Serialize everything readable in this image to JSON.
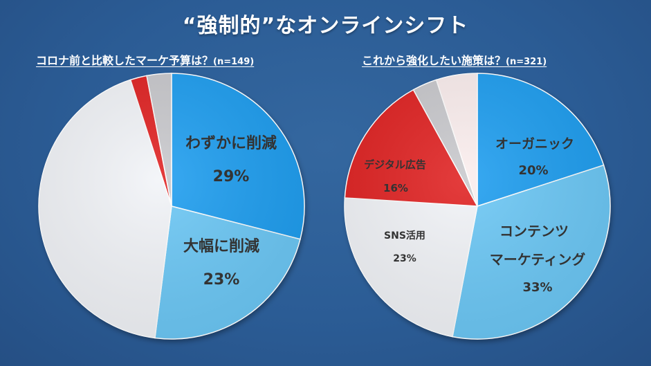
{
  "title": "“強制的”なオンラインシフト",
  "chart_data": [
    {
      "type": "pie",
      "title": "コロナ前と比較したマーケ予算は？",
      "sample": "(n=149)",
      "slices": [
        {
          "label": "わずかに削減",
          "value": 29,
          "value_label": "29%",
          "color": "#1e9ef0"
        },
        {
          "label": "大幅に削減",
          "value": 23,
          "value_label": "23%",
          "color": "#6cc8f6"
        },
        {
          "label": "",
          "value": 43,
          "value_label": "",
          "color": "#f2f4f8"
        },
        {
          "label": "",
          "value": 2,
          "value_label": "",
          "color": "#e02222"
        },
        {
          "label": "",
          "value": 3,
          "value_label": "",
          "color": "#c9c9cd"
        }
      ]
    },
    {
      "type": "pie",
      "title": "これから強化したい施策は？",
      "sample": "(n=321)",
      "slices": [
        {
          "label": "オーガニック",
          "value": 20,
          "value_label": "20%",
          "color": "#1e9ef0"
        },
        {
          "label": "コンテンツ\nマーケティング",
          "value": 33,
          "value_label": "33%",
          "color": "#6cc8f6"
        },
        {
          "label": "SNS活用",
          "value": 23,
          "value_label": "23%",
          "color": "#f2f4f8"
        },
        {
          "label": "デジタル広告",
          "value": 16,
          "value_label": "16%",
          "color": "#e02222"
        },
        {
          "label": "",
          "value": 3,
          "value_label": "",
          "color": "#c9c9cd"
        },
        {
          "label": "",
          "value": 5,
          "value_label": "",
          "color": "#fbeeee"
        }
      ]
    }
  ]
}
